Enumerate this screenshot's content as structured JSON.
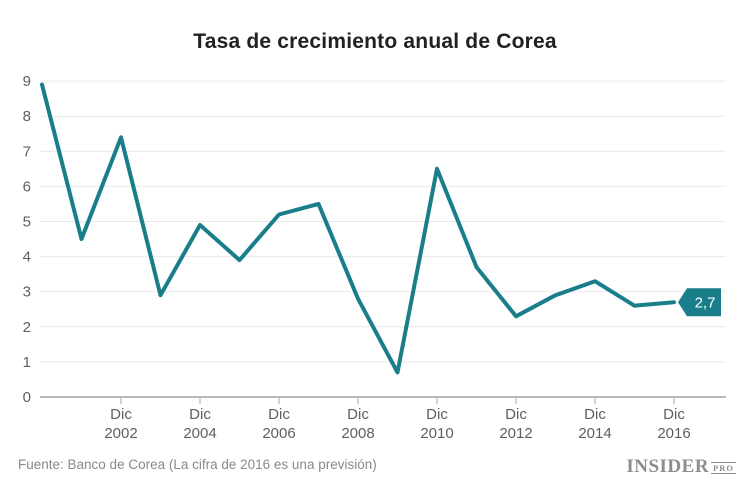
{
  "page_title": "Tasa de crecimiento anual de Corea",
  "chart_data": {
    "type": "line",
    "title": "Tasa de crecimiento anual de Corea",
    "x": [
      2000,
      2001,
      2002,
      2003,
      2004,
      2005,
      2006,
      2007,
      2008,
      2009,
      2010,
      2011,
      2012,
      2013,
      2014,
      2015,
      2016
    ],
    "series": [
      {
        "name": "Tasa de crecimiento anual (%)",
        "values": [
          8.9,
          4.5,
          7.4,
          2.9,
          4.9,
          3.9,
          5.2,
          5.5,
          2.8,
          0.7,
          6.5,
          3.7,
          2.3,
          2.9,
          3.3,
          2.6,
          2.7
        ]
      }
    ],
    "xlabel": "",
    "ylabel": "",
    "ylim": [
      0,
      9
    ],
    "yticks": [
      0,
      1,
      2,
      3,
      4,
      5,
      6,
      7,
      8,
      9
    ],
    "xtick_month_label": "Dic",
    "xtick_years": [
      2002,
      2004,
      2006,
      2008,
      2010,
      2012,
      2014,
      2016
    ],
    "grid": true,
    "legend_position": "none",
    "line_color": "#1A7E8A",
    "last_value_label": "2,7",
    "last_value_label_text_color": "#ffffff"
  },
  "footer": {
    "source": "Fuente: Banco de Corea (La cifra de 2016 es una previsión)",
    "logo": {
      "main": "INSIDER",
      "sub": "PRO"
    }
  }
}
